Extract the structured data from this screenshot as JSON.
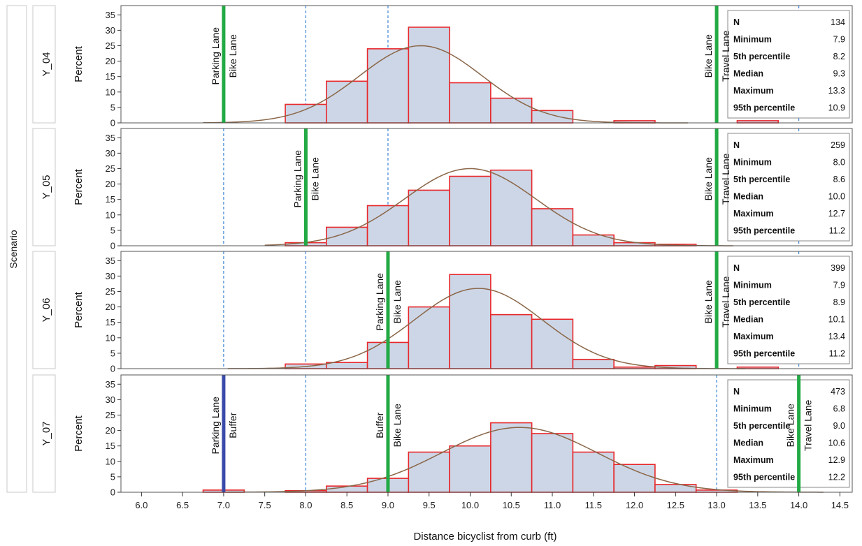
{
  "chart_data": {
    "type": "bar",
    "row_axis_label": "Scenario",
    "xlabel": "Distance bicyclist from curb (ft)",
    "ylabel": "Percent",
    "x_ticks": [
      "6.0",
      "6.5",
      "7.0",
      "7.5",
      "8.0",
      "8.5",
      "9.0",
      "9.5",
      "10.0",
      "10.5",
      "11.0",
      "11.5",
      "12.0",
      "12.5",
      "13.0",
      "13.5",
      "14.0",
      "14.5"
    ],
    "y_ticks": [
      "0",
      "5",
      "10",
      "15",
      "20",
      "25",
      "30",
      "35"
    ],
    "xlim": [
      5.75,
      14.65
    ],
    "ylim": [
      0,
      38
    ],
    "bin_width": 0.5,
    "grid_lines_x": [
      7.0,
      8.0,
      9.0,
      13.0,
      14.0
    ],
    "colors": {
      "bar_fill": "#cdd6e6",
      "bar_edge": "#e8272a",
      "density": "#8a6648",
      "lane_line": "#22aa44",
      "buffer_line": "#3a4aa8",
      "grid": "#3d86d6"
    },
    "panels": [
      {
        "scenario": "Y_04",
        "bins": [
          {
            "x": 8.0,
            "value": 6
          },
          {
            "x": 8.5,
            "value": 13.5
          },
          {
            "x": 9.0,
            "value": 24
          },
          {
            "x": 9.5,
            "value": 31
          },
          {
            "x": 10.0,
            "value": 13
          },
          {
            "x": 10.5,
            "value": 8
          },
          {
            "x": 11.0,
            "value": 4
          },
          {
            "x": 12.0,
            "value": 0.7
          },
          {
            "x": 13.5,
            "value": 0.7
          }
        ],
        "density": {
          "mean": 9.4,
          "sd": 0.75,
          "peak": 25,
          "xmin": 6.75,
          "xmax": 12.65
        },
        "lane_lines": [
          {
            "x": 7.0,
            "color": "#22aa44",
            "labels": [
              "Parking Lane",
              "Bike Lane"
            ]
          },
          {
            "x": 13.0,
            "color": "#22aa44",
            "labels": [
              "Bike Lane",
              "Travel Lane"
            ]
          }
        ],
        "stats": [
          {
            "label": "N",
            "value": "134"
          },
          {
            "label": "Minimum",
            "value": "7.9"
          },
          {
            "label": "5th percentile",
            "value": "8.2"
          },
          {
            "label": "Median",
            "value": "9.3"
          },
          {
            "label": "Maximum",
            "value": "13.3"
          },
          {
            "label": "95th percentile",
            "value": "10.9"
          }
        ]
      },
      {
        "scenario": "Y_05",
        "bins": [
          {
            "x": 8.0,
            "value": 1
          },
          {
            "x": 8.5,
            "value": 6
          },
          {
            "x": 9.0,
            "value": 13
          },
          {
            "x": 9.5,
            "value": 18
          },
          {
            "x": 10.0,
            "value": 22.5
          },
          {
            "x": 10.5,
            "value": 24.5
          },
          {
            "x": 11.0,
            "value": 12
          },
          {
            "x": 11.5,
            "value": 3.5
          },
          {
            "x": 12.0,
            "value": 1
          },
          {
            "x": 12.5,
            "value": 0.5
          }
        ],
        "density": {
          "mean": 10.0,
          "sd": 0.8,
          "peak": 25,
          "xmin": 7.5,
          "xmax": 13.2
        },
        "lane_lines": [
          {
            "x": 8.0,
            "color": "#22aa44",
            "labels": [
              "Parking Lane",
              "Bike Lane"
            ]
          },
          {
            "x": 13.0,
            "color": "#22aa44",
            "labels": [
              "Bike Lane",
              "Travel Lane"
            ]
          }
        ],
        "stats": [
          {
            "label": "N",
            "value": "259"
          },
          {
            "label": "Minimum",
            "value": "8.0"
          },
          {
            "label": "5th percentile",
            "value": "8.6"
          },
          {
            "label": "Median",
            "value": "10.0"
          },
          {
            "label": "Maximum",
            "value": "12.7"
          },
          {
            "label": "95th percentile",
            "value": "11.2"
          }
        ]
      },
      {
        "scenario": "Y_06",
        "bins": [
          {
            "x": 8.0,
            "value": 1.5
          },
          {
            "x": 8.5,
            "value": 2
          },
          {
            "x": 9.0,
            "value": 8.5
          },
          {
            "x": 9.5,
            "value": 20
          },
          {
            "x": 10.0,
            "value": 30.5
          },
          {
            "x": 10.5,
            "value": 17.5
          },
          {
            "x": 11.0,
            "value": 16
          },
          {
            "x": 11.5,
            "value": 3
          },
          {
            "x": 12.0,
            "value": 0.5
          },
          {
            "x": 12.5,
            "value": 1
          },
          {
            "x": 13.5,
            "value": 0.5
          }
        ],
        "density": {
          "mean": 10.1,
          "sd": 0.78,
          "peak": 26,
          "xmin": 7.05,
          "xmax": 13.35
        },
        "lane_lines": [
          {
            "x": 9.0,
            "color": "#22aa44",
            "labels": [
              "Parking Lane",
              "Bike Lane"
            ]
          },
          {
            "x": 13.0,
            "color": "#22aa44",
            "labels": [
              "Bike Lane",
              "Travel Lane"
            ]
          }
        ],
        "stats": [
          {
            "label": "N",
            "value": "399"
          },
          {
            "label": "Minimum",
            "value": "7.9"
          },
          {
            "label": "5th percentile",
            "value": "8.9"
          },
          {
            "label": "Median",
            "value": "10.1"
          },
          {
            "label": "Maximum",
            "value": "13.4"
          },
          {
            "label": "95th percentile",
            "value": "11.2"
          }
        ]
      },
      {
        "scenario": "Y_07",
        "bins": [
          {
            "x": 7.0,
            "value": 0.7
          },
          {
            "x": 8.0,
            "value": 0.5
          },
          {
            "x": 8.5,
            "value": 2
          },
          {
            "x": 9.0,
            "value": 4.5
          },
          {
            "x": 9.5,
            "value": 13
          },
          {
            "x": 10.0,
            "value": 15
          },
          {
            "x": 10.5,
            "value": 22.5
          },
          {
            "x": 11.0,
            "value": 19
          },
          {
            "x": 11.5,
            "value": 13
          },
          {
            "x": 12.0,
            "value": 9
          },
          {
            "x": 12.5,
            "value": 2.5
          },
          {
            "x": 13.0,
            "value": 0.7
          }
        ],
        "density": {
          "mean": 10.6,
          "sd": 0.95,
          "peak": 21,
          "xmin": 7.05,
          "xmax": 14.3
        },
        "lane_lines": [
          {
            "x": 7.0,
            "color": "#3a4aa8",
            "labels": [
              "Parking Lane",
              "Buffer"
            ]
          },
          {
            "x": 9.0,
            "color": "#22aa44",
            "labels": [
              "Buffer",
              "Bike Lane"
            ]
          },
          {
            "x": 14.0,
            "color": "#22aa44",
            "labels": [
              "Bike Lane",
              "Travel Lane"
            ]
          }
        ],
        "stats": [
          {
            "label": "N",
            "value": "473"
          },
          {
            "label": "Minimum",
            "value": "6.8"
          },
          {
            "label": "5th percentile",
            "value": "9.0"
          },
          {
            "label": "Median",
            "value": "10.6"
          },
          {
            "label": "Maximum",
            "value": "12.9"
          },
          {
            "label": "95th percentile",
            "value": "12.2"
          }
        ]
      }
    ]
  }
}
